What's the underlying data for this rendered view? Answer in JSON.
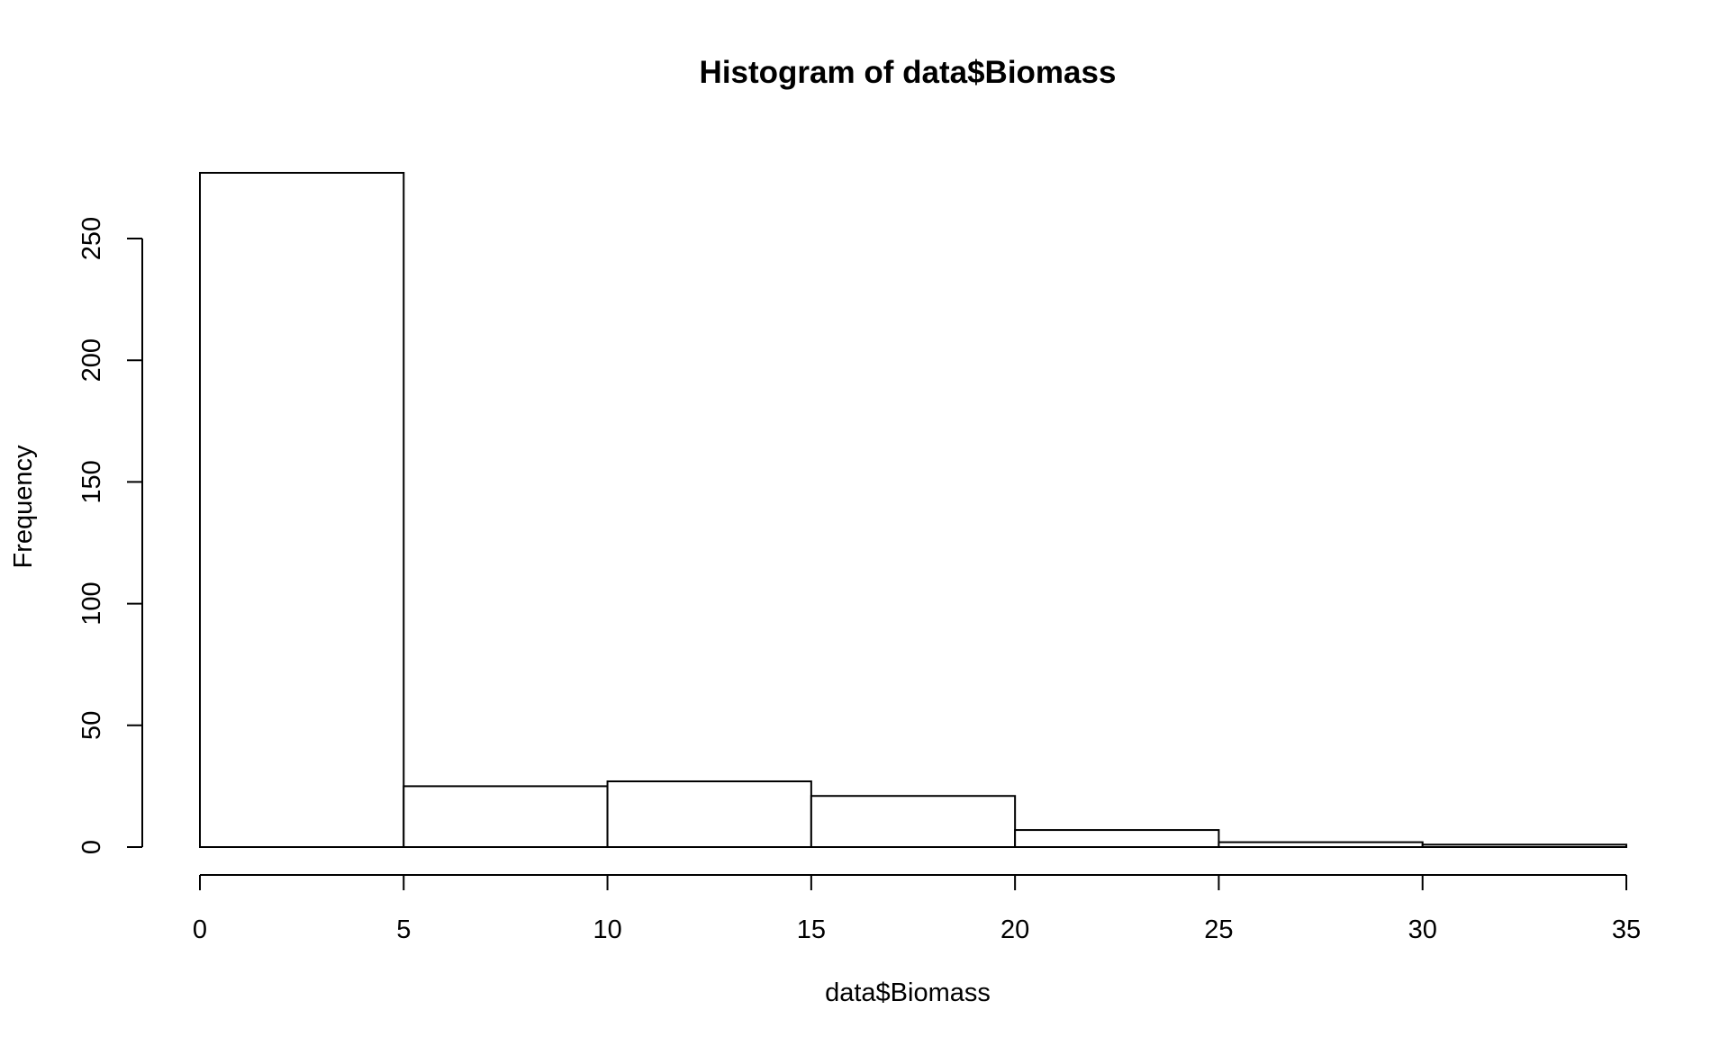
{
  "chart_data": {
    "type": "bar",
    "subtype": "histogram",
    "title": "Histogram of data$Biomass",
    "xlabel": "data$Biomass",
    "ylabel": "Frequency",
    "bins": [
      {
        "start": 0,
        "end": 5,
        "count": 277
      },
      {
        "start": 5,
        "end": 10,
        "count": 25
      },
      {
        "start": 10,
        "end": 15,
        "count": 27
      },
      {
        "start": 15,
        "end": 20,
        "count": 21
      },
      {
        "start": 20,
        "end": 25,
        "count": 7
      },
      {
        "start": 25,
        "end": 30,
        "count": 2
      },
      {
        "start": 30,
        "end": 35,
        "count": 1
      }
    ],
    "categories": [
      "0-5",
      "5-10",
      "10-15",
      "15-20",
      "20-25",
      "25-30",
      "30-35"
    ],
    "values": [
      277,
      25,
      27,
      21,
      7,
      2,
      1
    ],
    "xlim": [
      0,
      35
    ],
    "ylim": [
      0,
      277
    ],
    "xticks": [
      0,
      5,
      10,
      15,
      20,
      25,
      30,
      35
    ],
    "xtick_labels": [
      "0",
      "5",
      "10",
      "15",
      "20",
      "25",
      "30",
      "35"
    ],
    "yticks": [
      0,
      50,
      100,
      150,
      200,
      250
    ],
    "ytick_labels": [
      "0",
      "50",
      "100",
      "150",
      "200",
      "250"
    ],
    "grid": false,
    "legend": "none",
    "bar_fill": "#ffffff",
    "bar_stroke": "#000000"
  }
}
